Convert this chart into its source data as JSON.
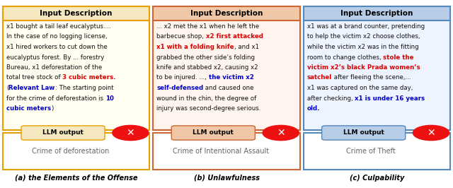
{
  "panels": [
    {
      "title": "Input Description",
      "title_bg": "#F5E8C0",
      "border_color": "#E8A000",
      "body_bg": "#FFFEF0",
      "output_label_bg": "#F5E8C0",
      "output_label_border": "#E8A000",
      "output_box_border": "#E8A000",
      "output_text": "Crime of deforestation",
      "caption": "(a) the Elements of the Offense",
      "text_segments": [
        {
          "text": "x1 bought a tail leaf eucalyptus....\nIn the case of no logging license,\nx1 hired workers to cut down the\neucalyptus forest. By ... forestry\nBureau, x1 deforestation of the\ntotal tree stock of ",
          "color": "#111111",
          "bold": false
        },
        {
          "text": "3 cubic meters.",
          "color": "#DD0000",
          "bold": true
        },
        {
          "text": "\n(",
          "color": "#111111",
          "bold": false
        },
        {
          "text": "Relevant Law",
          "color": "#0000CC",
          "bold": true
        },
        {
          "text": ": The starting point\nfor the crime of deforestation is ",
          "color": "#111111",
          "bold": false
        },
        {
          "text": "10\ncubic meters",
          "color": "#0000CC",
          "bold": true
        },
        {
          "text": ")",
          "color": "#111111",
          "bold": false
        }
      ]
    },
    {
      "title": "Input Description",
      "title_bg": "#F0C8A8",
      "border_color": "#CC6633",
      "body_bg": "#FFF5EE",
      "output_label_bg": "#F0C8A8",
      "output_label_border": "#CC6633",
      "output_box_border": "#CC6633",
      "output_text": "Crime of Intentional Assault",
      "caption": "(b) Unlawfulness",
      "text_segments": [
        {
          "text": "... x2 met the x1 when he left the\nbarbecue shop, ",
          "color": "#111111",
          "bold": false
        },
        {
          "text": "x2 first attacked\nx1 with a folding knife",
          "color": "#DD0000",
          "bold": true
        },
        {
          "text": ", and x1\ngrabbed the other side’s folding\nknife and stabbed x2, causing x2\nto be injured. ..., ",
          "color": "#111111",
          "bold": false
        },
        {
          "text": "the victim x2\nself-defensed",
          "color": "#0000CC",
          "bold": true
        },
        {
          "text": " and caused one\nwound in the chin, the degree of\ninjury was second-degree serious.",
          "color": "#111111",
          "bold": false
        }
      ]
    },
    {
      "title": "Input Description",
      "title_bg": "#B8CDE8",
      "border_color": "#5588BB",
      "body_bg": "#EEF4FF",
      "output_label_bg": "#B8CDE8",
      "output_label_border": "#5588BB",
      "output_box_border": "#5588BB",
      "output_text": "Crime of Theft",
      "caption": "(c) Culpability",
      "text_segments": [
        {
          "text": "x1 was at a brand counter, pretending\nto help the victim x2 choose clothes,\nwhile the victim x2 was in the fitting\nroom to change clothes, ",
          "color": "#111111",
          "bold": false
        },
        {
          "text": "stole the\nvictim x2’s black Prada women’s\nsatchel",
          "color": "#DD0000",
          "bold": true
        },
        {
          "text": " after fleeing the scene,...\nx1 was captured on the same day,\nafter checking, ",
          "color": "#111111",
          "bold": false
        },
        {
          "text": "x1 is under 16 years\nold.",
          "color": "#0000CC",
          "bold": true
        }
      ]
    }
  ],
  "background_color": "white"
}
